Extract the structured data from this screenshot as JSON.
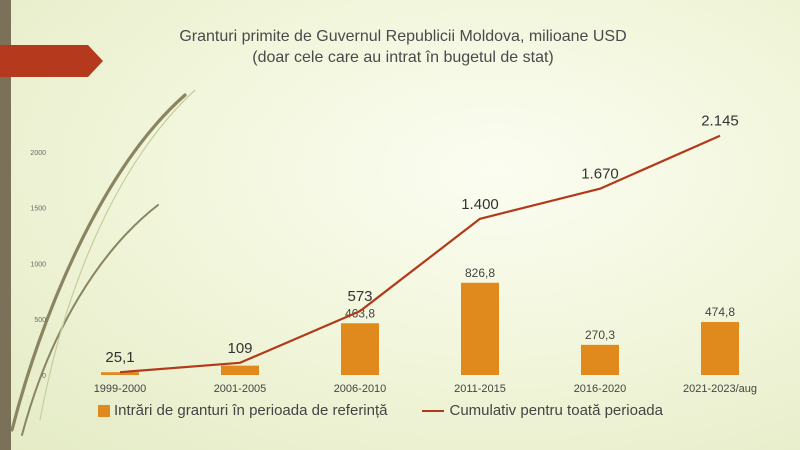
{
  "colors": {
    "bars": "#e08a1e",
    "line": "#b23a1a",
    "banner": "#b5391c",
    "axis_text": "#6a6a6a",
    "swirl": "#8a8460"
  },
  "chart_data": {
    "type": "bar",
    "title": "Granturi primite de Guvernul Republicii Moldova, milioane USD",
    "subtitle": "(doar cele care au intrat în bugetul de stat)",
    "categories": [
      "1999-2000",
      "2001-2005",
      "2006-2010",
      "2011-2015",
      "2016-2020",
      "2021-2023/aug"
    ],
    "y_ticks": [
      "0",
      "500",
      "1000",
      "1500",
      "2000"
    ],
    "ylim": [
      0,
      2250
    ],
    "grid": false,
    "legend_position": "bottom",
    "series": [
      {
        "name": "Intrări de granturi în perioada de referință",
        "type": "bar",
        "values": [
          25.1,
          84,
          463.8,
          826.8,
          270.3,
          474.8
        ],
        "labels": [
          "",
          "",
          "463,8",
          "826,8",
          "270,3",
          "474,8"
        ]
      },
      {
        "name": "Cumulativ pentru toată perioada",
        "type": "line",
        "values": [
          25.1,
          109,
          573,
          1400,
          1670,
          2145
        ],
        "labels": [
          "25,1",
          "109",
          "573",
          "1.400",
          "1.670",
          "2.145"
        ]
      }
    ]
  }
}
